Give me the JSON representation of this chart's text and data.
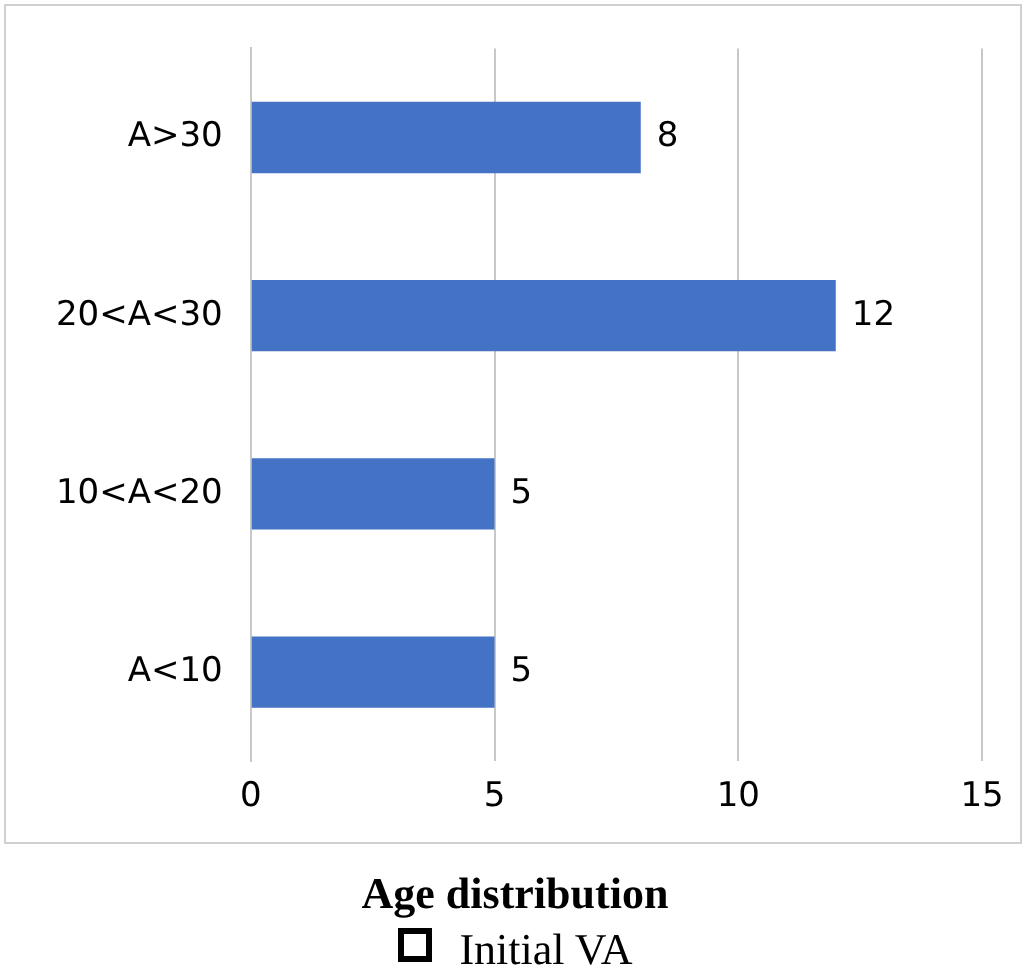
{
  "chart_data": {
    "type": "bar",
    "orientation": "horizontal",
    "title": "Age distribution",
    "categories": [
      "A>30",
      "20<A<30",
      "10<A<20",
      "A<10"
    ],
    "values": [
      8,
      12,
      5,
      5
    ],
    "color": "#4472c4",
    "xlim": [
      0,
      15
    ],
    "xticks": [
      0,
      5,
      10,
      15
    ],
    "grid": "x",
    "data_labels": true,
    "legend": false,
    "annotations": [
      "Initial VA"
    ]
  }
}
